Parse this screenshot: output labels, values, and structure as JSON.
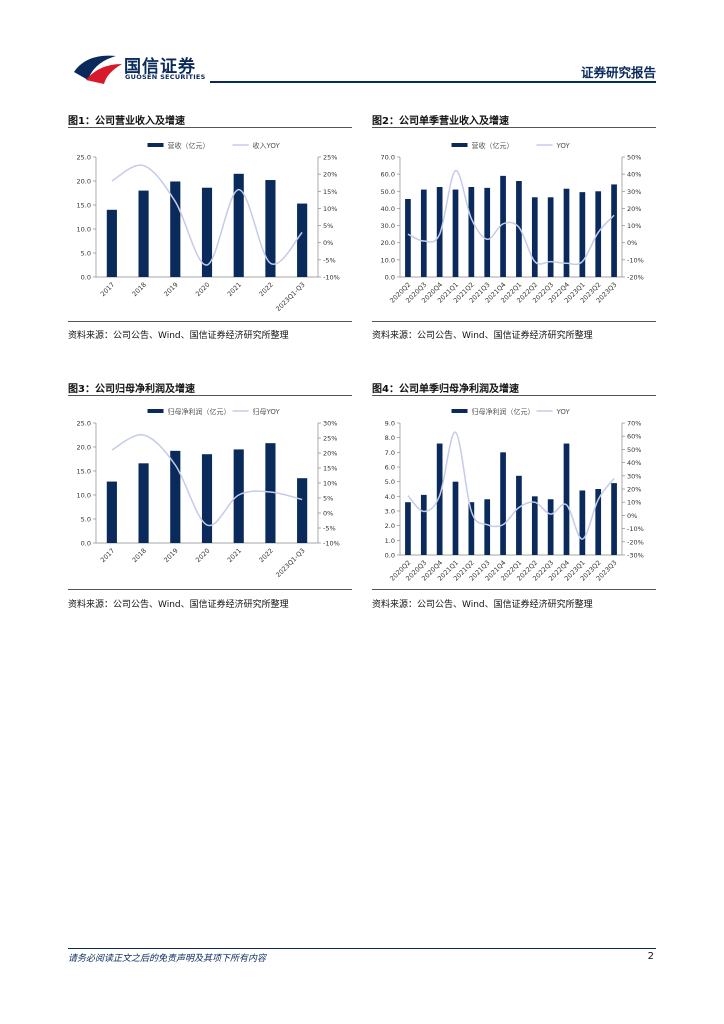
{
  "header": {
    "logo_cn": "国信证券",
    "logo_en": "GUOSEN SECURITIES",
    "report_type": "证券研究报告",
    "brand_color": "#0a2a5c",
    "accent_red": "#d7192a"
  },
  "footer": {
    "disclaimer": "请务必阅读正文之后的免责声明及其项下所有内容",
    "page": "2"
  },
  "colors": {
    "bar": "#0a2a5c",
    "line": "#c5cbe8"
  },
  "figures": [
    {
      "title": "图1：公司营业收入及增速",
      "source": "资料来源：公司公告、Wind、国信证券经济研究所整理"
    },
    {
      "title": "图2：公司单季营业收入及增速",
      "source": "资料来源：公司公告、Wind、国信证券经济研究所整理"
    },
    {
      "title": "图3：公司归母净利润及增速",
      "source": "资料来源：公司公告、Wind、国信证券经济研究所整理"
    },
    {
      "title": "图4：公司单季归母净利润及增速",
      "source": "资料来源：公司公告、Wind、国信证券经济研究所整理"
    }
  ],
  "chart_data": [
    {
      "type": "bar",
      "categories": [
        "2017",
        "2018",
        "2019",
        "2020",
        "2021",
        "2022",
        "2023Q1-Q3"
      ],
      "series": [
        {
          "name": "营收（亿元）",
          "type": "bar",
          "axis": "left",
          "values": [
            14.0,
            18.0,
            19.9,
            18.6,
            21.5,
            20.2,
            15.3
          ]
        },
        {
          "name": "收入YOY",
          "type": "line",
          "axis": "right",
          "values": [
            0.18,
            0.225,
            0.12,
            -0.065,
            0.155,
            -0.06,
            0.03
          ]
        }
      ],
      "yticks_left": [
        "0.0",
        "5.0",
        "10.0",
        "15.0",
        "20.0",
        "25.0"
      ],
      "yticks_right": [
        "-10%",
        "-5%",
        "0%",
        "5%",
        "10%",
        "15%",
        "20%",
        "25%"
      ],
      "ylim_left": [
        0,
        25
      ],
      "ylim_right": [
        -0.1,
        0.25
      ]
    },
    {
      "type": "bar",
      "categories": [
        "2020Q2",
        "2020Q3",
        "2020Q4",
        "2021Q1",
        "2021Q2",
        "2021Q3",
        "2021Q4",
        "2022Q1",
        "2022Q2",
        "2022Q3",
        "2022Q4",
        "2023Q1",
        "2023Q2",
        "2023Q3"
      ],
      "series": [
        {
          "name": "营收（亿元）",
          "type": "bar",
          "axis": "left",
          "values": [
            45.5,
            51.0,
            52.5,
            51.0,
            52.5,
            52.0,
            59.0,
            56.0,
            46.5,
            46.5,
            51.5,
            49.5,
            50.0,
            54.0
          ]
        },
        {
          "name": "YOY",
          "type": "line",
          "axis": "right",
          "values": [
            0.05,
            0.01,
            0.05,
            0.42,
            0.14,
            0.02,
            0.11,
            0.09,
            -0.11,
            -0.11,
            -0.12,
            -0.11,
            0.06,
            0.16
          ]
        }
      ],
      "yticks_left": [
        "0.0",
        "10.0",
        "20.0",
        "30.0",
        "40.0",
        "50.0",
        "60.0",
        "70.0"
      ],
      "yticks_right": [
        "-20%",
        "-10%",
        "0%",
        "10%",
        "20%",
        "30%",
        "40%",
        "50%"
      ],
      "ylim_left": [
        0,
        70
      ],
      "ylim_right": [
        -0.2,
        0.5
      ]
    },
    {
      "type": "bar",
      "categories": [
        "2017",
        "2018",
        "2019",
        "2020",
        "2021",
        "2022",
        "2023Q1-Q3"
      ],
      "series": [
        {
          "name": "归母净利润（亿元）",
          "type": "bar",
          "axis": "left",
          "values": [
            12.8,
            16.6,
            19.2,
            18.5,
            19.5,
            20.8,
            13.5
          ]
        },
        {
          "name": "归母YOY",
          "type": "line",
          "axis": "right",
          "values": [
            0.21,
            0.26,
            0.16,
            -0.04,
            0.06,
            0.07,
            0.045
          ]
        }
      ],
      "yticks_left": [
        "0.0",
        "5.0",
        "10.0",
        "15.0",
        "20.0",
        "25.0"
      ],
      "yticks_right": [
        "-10%",
        "-5%",
        "0%",
        "5%",
        "10%",
        "15%",
        "20%",
        "25%",
        "30%"
      ],
      "ylim_left": [
        0,
        25
      ],
      "ylim_right": [
        -0.1,
        0.3
      ]
    },
    {
      "type": "bar",
      "categories": [
        "2020Q2",
        "2020Q3",
        "2020Q4",
        "2021Q1",
        "2021Q2",
        "2021Q3",
        "2021Q4",
        "2022Q1",
        "2022Q2",
        "2022Q3",
        "2022Q4",
        "2023Q1",
        "2023Q2",
        "2023Q3"
      ],
      "series": [
        {
          "name": "归母净利润（亿元）",
          "type": "bar",
          "axis": "left",
          "values": [
            3.6,
            4.1,
            7.6,
            5.0,
            3.6,
            3.8,
            7.0,
            5.4,
            4.0,
            3.8,
            7.6,
            4.4,
            4.5,
            4.9
          ]
        },
        {
          "name": "YOY",
          "type": "line",
          "axis": "right",
          "values": [
            0.15,
            0.03,
            0.15,
            0.63,
            0.03,
            -0.07,
            -0.07,
            0.06,
            0.1,
            0.01,
            0.08,
            -0.18,
            0.12,
            0.28
          ]
        }
      ],
      "yticks_left": [
        "0.0",
        "1.0",
        "2.0",
        "3.0",
        "4.0",
        "5.0",
        "6.0",
        "7.0",
        "8.0",
        "9.0"
      ],
      "yticks_right": [
        "-30%",
        "-20%",
        "-10%",
        "0%",
        "10%",
        "20%",
        "30%",
        "40%",
        "50%",
        "60%",
        "70%"
      ],
      "ylim_left": [
        0,
        9
      ],
      "ylim_right": [
        -0.3,
        0.7
      ]
    }
  ]
}
